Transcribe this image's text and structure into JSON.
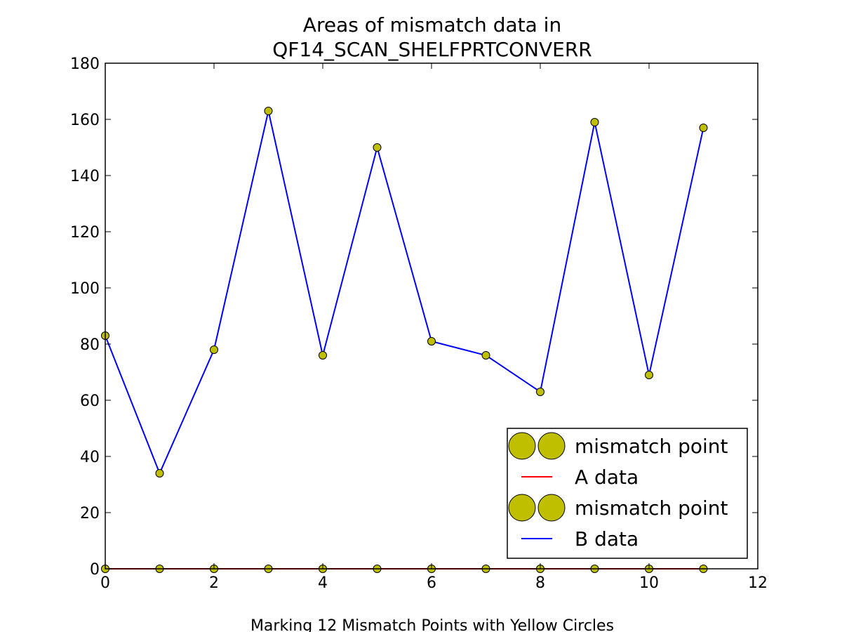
{
  "chart_data": {
    "type": "line",
    "title_lines": [
      "Areas of mismatch data in",
      "QF14_SCAN_SHELFPRTCONVERR"
    ],
    "xlabel": "Marking 12 Mismatch Points with Yellow Circles",
    "ylabel": "",
    "xlim": [
      0,
      12
    ],
    "ylim": [
      0,
      180
    ],
    "xticks": [
      0,
      2,
      4,
      6,
      8,
      10,
      12
    ],
    "yticks": [
      0,
      20,
      40,
      60,
      80,
      100,
      120,
      140,
      160,
      180
    ],
    "grid": false,
    "legend_position": "lower-right",
    "x": [
      0,
      1,
      2,
      3,
      4,
      5,
      6,
      7,
      8,
      9,
      10,
      11
    ],
    "series": [
      {
        "name": "A data",
        "color": "#ff0000",
        "values": [
          0,
          0,
          0,
          0,
          0,
          0,
          0,
          0,
          0,
          0,
          0,
          0
        ],
        "marker_series": "mismatch point"
      },
      {
        "name": "B data",
        "color": "#0000ff",
        "values": [
          83,
          34,
          78,
          163,
          76,
          150,
          81,
          76,
          63,
          159,
          69,
          157
        ],
        "marker_series": "mismatch point"
      }
    ],
    "marker_color": "#bfbf00",
    "legend": [
      {
        "label": "mismatch point",
        "kind": "marker"
      },
      {
        "label": "A data",
        "kind": "line",
        "color": "#ff0000"
      },
      {
        "label": "mismatch point",
        "kind": "marker"
      },
      {
        "label": "B data",
        "kind": "line",
        "color": "#0000ff"
      }
    ]
  }
}
